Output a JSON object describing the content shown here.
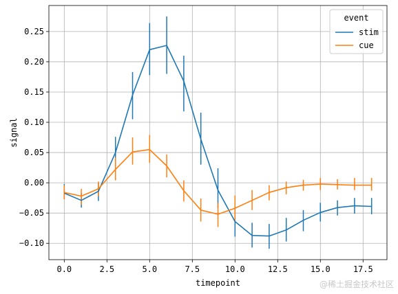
{
  "watermark": "@稀土掘金技术社区",
  "chart_data": {
    "type": "line",
    "xlabel": "timepoint",
    "ylabel": "signal",
    "xlim": [
      -0.9,
      18.9
    ],
    "ylim": [
      -0.127,
      0.293
    ],
    "xticks": [
      0,
      2.5,
      5,
      7.5,
      10,
      12.5,
      15,
      17.5
    ],
    "xtick_labels": [
      "0.0",
      "2.5",
      "5.0",
      "7.5",
      "10.0",
      "12.5",
      "15.0",
      "17.5"
    ],
    "yticks": [
      -0.1,
      -0.05,
      0.0,
      0.05,
      0.1,
      0.15,
      0.2,
      0.25
    ],
    "ytick_labels": [
      "−0.10",
      "−0.05",
      "0.00",
      "0.05",
      "0.10",
      "0.15",
      "0.20",
      "0.25"
    ],
    "grid": true,
    "legend": {
      "title": "event",
      "placement": "top-right"
    },
    "x": [
      0,
      1,
      2,
      3,
      4,
      5,
      6,
      7,
      8,
      9,
      10,
      11,
      12,
      13,
      14,
      15,
      16,
      17,
      18
    ],
    "series": [
      {
        "name": "stim",
        "color": "#1f77b4",
        "values": [
          -0.017,
          -0.029,
          -0.014,
          0.05,
          0.145,
          0.22,
          0.227,
          0.168,
          0.072,
          -0.012,
          -0.064,
          -0.087,
          -0.088,
          -0.078,
          -0.062,
          -0.049,
          -0.041,
          -0.038,
          -0.039
        ],
        "err_low": [
          -0.027,
          -0.041,
          -0.03,
          0.028,
          0.105,
          0.178,
          0.18,
          0.118,
          0.03,
          -0.042,
          -0.089,
          -0.107,
          -0.109,
          -0.097,
          -0.08,
          -0.064,
          -0.054,
          -0.051,
          -0.052
        ],
        "err_high": [
          -0.002,
          -0.017,
          0.0,
          0.076,
          0.183,
          0.264,
          0.275,
          0.21,
          0.116,
          0.024,
          -0.04,
          -0.066,
          -0.068,
          -0.058,
          -0.045,
          -0.033,
          -0.029,
          -0.025,
          -0.025
        ]
      },
      {
        "name": "cue",
        "color": "#ff7f0e",
        "values": [
          -0.016,
          -0.022,
          -0.01,
          0.022,
          0.051,
          0.055,
          0.028,
          -0.013,
          -0.045,
          -0.052,
          -0.042,
          -0.029,
          -0.016,
          -0.008,
          -0.004,
          -0.002,
          -0.003,
          -0.004,
          -0.004
        ],
        "err_low": [
          -0.027,
          -0.036,
          -0.022,
          0.004,
          0.03,
          0.033,
          0.009,
          -0.031,
          -0.064,
          -0.073,
          -0.063,
          -0.045,
          -0.029,
          -0.019,
          -0.013,
          -0.012,
          -0.011,
          -0.012,
          -0.013
        ],
        "err_high": [
          -0.004,
          -0.01,
          0.002,
          0.042,
          0.075,
          0.079,
          0.047,
          0.004,
          -0.026,
          -0.033,
          -0.021,
          -0.012,
          -0.004,
          0.002,
          0.005,
          0.008,
          0.006,
          0.008,
          0.008
        ]
      }
    ]
  }
}
